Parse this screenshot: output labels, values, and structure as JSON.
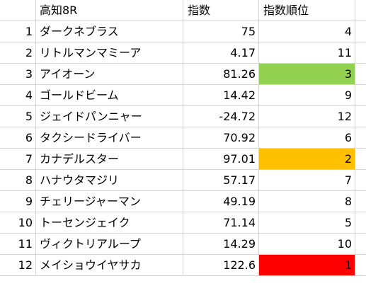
{
  "header": {
    "num": "",
    "race": "高知8R",
    "score": "指数",
    "rank": "指数順位"
  },
  "colors": {
    "rank1": "#ff0000",
    "rank2": "#ffc000",
    "rank3": "#92d050",
    "grid": "#d4d4d4"
  },
  "rows": [
    {
      "num": "1",
      "name": "ダークネブラス",
      "score": "75",
      "rank": "4",
      "highlight": ""
    },
    {
      "num": "2",
      "name": "リトルマンマミーア",
      "score": "4.17",
      "rank": "11",
      "highlight": ""
    },
    {
      "num": "3",
      "name": "アイオーン",
      "score": "81.26",
      "rank": "3",
      "highlight": "#92d050"
    },
    {
      "num": "4",
      "name": "ゴールドビーム",
      "score": "14.42",
      "rank": "9",
      "highlight": ""
    },
    {
      "num": "5",
      "name": "ジェイドパンニャー",
      "score": "-24.72",
      "rank": "12",
      "highlight": ""
    },
    {
      "num": "6",
      "name": "タクシードライバー",
      "score": "70.92",
      "rank": "6",
      "highlight": ""
    },
    {
      "num": "7",
      "name": "カナデルスター",
      "score": "97.01",
      "rank": "2",
      "highlight": "#ffc000"
    },
    {
      "num": "8",
      "name": "ハナウタマジリ",
      "score": "57.17",
      "rank": "7",
      "highlight": ""
    },
    {
      "num": "9",
      "name": "チェリージャーマン",
      "score": "49.19",
      "rank": "8",
      "highlight": ""
    },
    {
      "num": "10",
      "name": "トーセンジェイク",
      "score": "71.14",
      "rank": "5",
      "highlight": ""
    },
    {
      "num": "11",
      "name": "ヴィクトリアループ",
      "score": "14.29",
      "rank": "10",
      "highlight": ""
    },
    {
      "num": "12",
      "name": "メイショウイヤサカ",
      "score": "122.6",
      "rank": "1",
      "highlight": "#ff0000"
    }
  ]
}
